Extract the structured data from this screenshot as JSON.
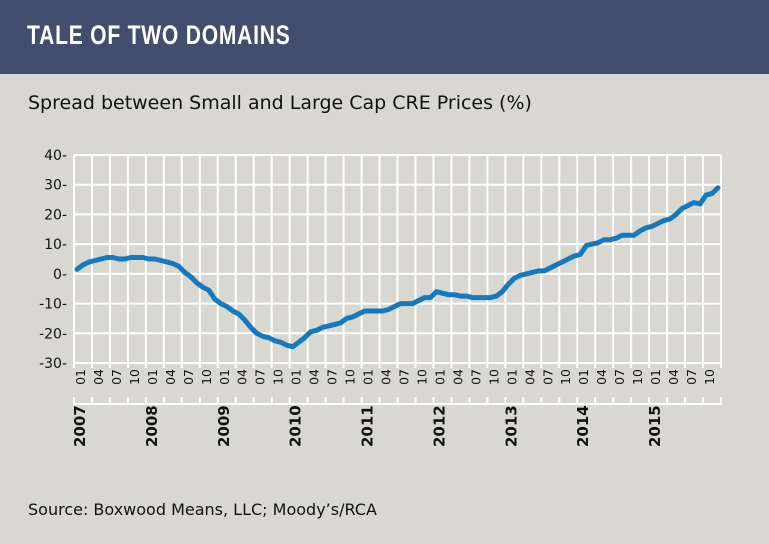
{
  "header": {
    "title": "TALE OF TWO DOMAINS"
  },
  "colors": {
    "header_bg": "#434e6e",
    "background": "#d9d8d0",
    "line": "#1479bf",
    "grid": "#ffffff"
  },
  "chart_data": {
    "type": "line",
    "title": "Spread between Small and Large Cap CRE Prices (%)",
    "source": "Source: Boxwood Means, LLC; Moody’s/RCA",
    "ylim": [
      -30,
      40
    ],
    "y_ticks": [
      "40-",
      "30-",
      "20-",
      "10-",
      "0-",
      "-10-",
      "-20-",
      "-30-"
    ],
    "y_tick_values": [
      40,
      30,
      20,
      10,
      0,
      -10,
      -20,
      -30
    ],
    "x_range": [
      "2007-01",
      "2015-12"
    ],
    "month_ticks": [
      "01",
      "04",
      "07",
      "10"
    ],
    "years": [
      "2007",
      "2008",
      "2009",
      "2010",
      "2011",
      "2012",
      "2013",
      "2014",
      "2015"
    ],
    "grid": true,
    "frequency": "monthly",
    "series": [
      {
        "values": [
          1.5,
          3,
          4,
          4.5,
          5,
          5.5,
          5.5,
          5,
          5,
          5.5,
          5.5,
          5.5,
          5,
          5,
          4.5,
          4,
          3.5,
          2.5,
          0.5,
          -1,
          -3,
          -4.5,
          -5.5,
          -8.5,
          -10,
          -11,
          -12.5,
          -13.5,
          -15.5,
          -18,
          -20,
          -21,
          -21.5,
          -22.5,
          -23,
          -24,
          -24.5,
          -23,
          -21.5,
          -19.5,
          -19,
          -18,
          -17.5,
          -17,
          -16.5,
          -15,
          -14.5,
          -13.5,
          -12.5,
          -12.5,
          -12.5,
          -12.5,
          -12,
          -11,
          -10,
          -10,
          -10,
          -9,
          -8,
          -8,
          -6,
          -6.5,
          -7,
          -7,
          -7.5,
          -7.5,
          -8,
          -8,
          -8,
          -8,
          -7.5,
          -6,
          -3.5,
          -1.5,
          -0.5,
          0,
          0.5,
          1,
          1,
          2,
          3,
          4,
          5,
          6,
          6.5,
          9.5,
          10,
          10.5,
          11.5,
          11.5,
          12,
          13,
          13,
          13,
          14.5,
          15.5,
          16,
          17,
          18,
          18.5,
          20,
          22,
          23,
          24,
          23.5,
          26.5,
          27,
          29
        ]
      }
    ]
  }
}
